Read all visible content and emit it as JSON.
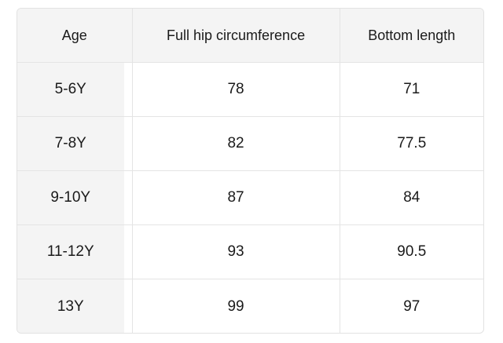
{
  "table": {
    "headers": [
      "Age",
      "Full hip circumference",
      "Bottom length"
    ],
    "rows": [
      [
        "5-6Y",
        "78",
        "71"
      ],
      [
        "7-8Y",
        "82",
        "77.5"
      ],
      [
        "9-10Y",
        "87",
        "84"
      ],
      [
        "11-12Y",
        "93",
        "90.5"
      ],
      [
        "13Y",
        "99",
        "97"
      ]
    ]
  }
}
